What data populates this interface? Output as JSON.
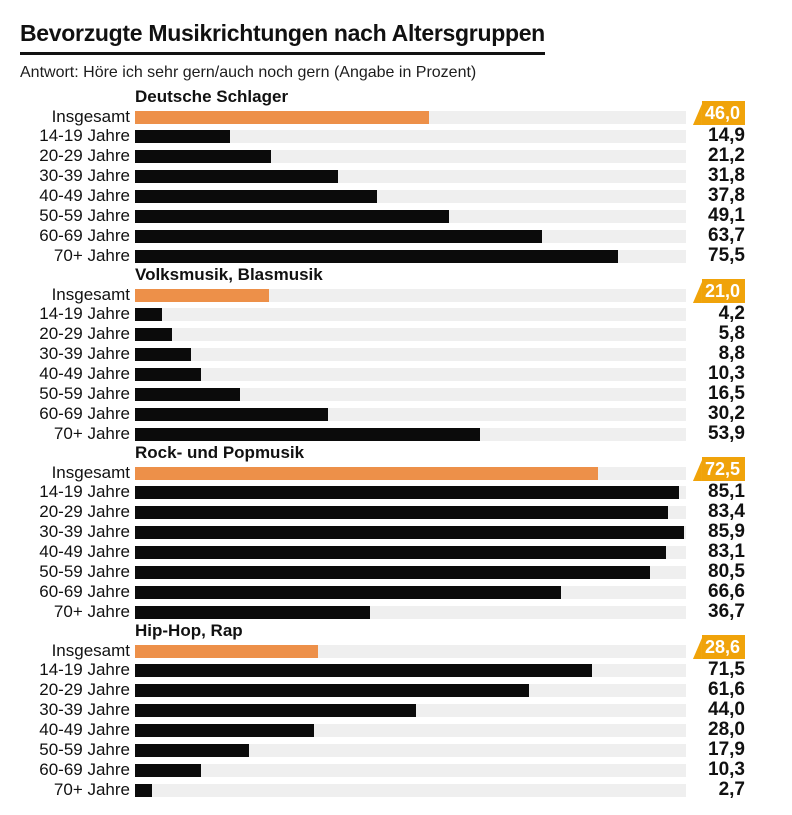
{
  "chart_data": {
    "type": "bar",
    "orientation": "horizontal",
    "title": "Bevorzugte Musikrichtungen nach Altersgruppen",
    "subtitle": "Antwort: Höre ich sehr gern/auch noch gern (Angabe in Prozent)",
    "unit": "Prozent",
    "number_format": "decimal-comma",
    "scale_max": 86.2,
    "grid": false,
    "legend": false,
    "categories": [
      "Insgesamt",
      "14-19 Jahre",
      "20-29 Jahre",
      "30-39 Jahre",
      "40-49 Jahre",
      "50-59 Jahre",
      "60-69 Jahre",
      "70+ Jahre"
    ],
    "highlight_category": "Insgesamt",
    "groups": [
      {
        "label": "Deutsche Schlager",
        "values": [
          46.0,
          14.9,
          21.2,
          31.8,
          37.8,
          49.1,
          63.7,
          75.5
        ]
      },
      {
        "label": "Volksmusik, Blasmusik",
        "values": [
          21.0,
          4.2,
          5.8,
          8.8,
          10.3,
          16.5,
          30.2,
          53.9
        ]
      },
      {
        "label": "Rock- und Popmusik",
        "values": [
          72.5,
          85.1,
          83.4,
          85.9,
          83.1,
          80.5,
          66.6,
          36.7
        ]
      },
      {
        "label": "Hip-Hop, Rap",
        "values": [
          28.6,
          71.5,
          61.6,
          44.0,
          28.0,
          17.9,
          10.3,
          2.7
        ]
      }
    ],
    "colors": {
      "bar": "#0b0b0b",
      "highlight_bar": "#ed9049",
      "badge": "#f0a30a",
      "badge_text": "#ffffff",
      "track": "#efefef",
      "text": "#111111"
    }
  }
}
